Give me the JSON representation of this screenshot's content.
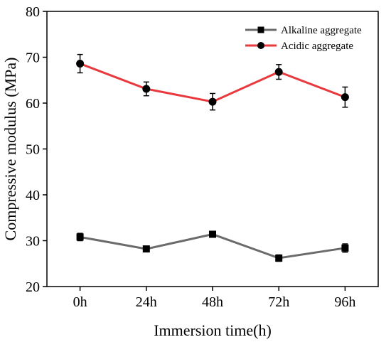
{
  "chart_data": {
    "type": "line",
    "title": "",
    "xlabel": "Immersion time(h)",
    "ylabel": "Compressive modulus (MPa)",
    "categories": [
      "0h",
      "24h",
      "48h",
      "72h",
      "96h"
    ],
    "ylim": [
      20,
      80
    ],
    "yticks": [
      20,
      30,
      40,
      50,
      60,
      70,
      80
    ],
    "grid": false,
    "legend_position": "top-right",
    "series": [
      {
        "name": "Alkaline aggregate",
        "marker": "square",
        "color": "#6b6b6b",
        "values": [
          30.8,
          28.2,
          31.4,
          26.2,
          28.4
        ],
        "errors": [
          0.8,
          0.6,
          0.6,
          0.7,
          0.9
        ]
      },
      {
        "name": "Acidic aggregate",
        "marker": "circle",
        "color": "#e8393e",
        "values": [
          68.6,
          63.1,
          60.3,
          66.8,
          61.3
        ],
        "errors": [
          2.0,
          1.5,
          1.8,
          1.6,
          2.2
        ]
      }
    ]
  }
}
